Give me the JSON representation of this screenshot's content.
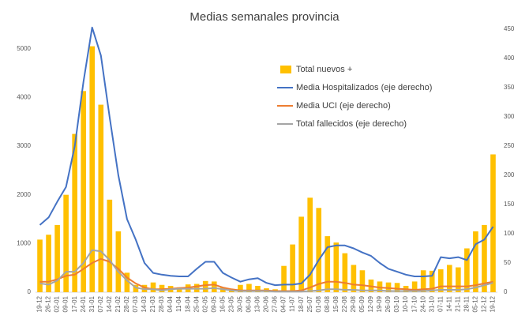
{
  "chart_data": {
    "type": "bar",
    "title": "Medias semanales provincia",
    "legend": "upper right",
    "categories": [
      "19-12",
      "26-12",
      "02-01",
      "09-01",
      "17-01",
      "24-01",
      "31-01",
      "07-02",
      "14-02",
      "21-02",
      "28-02",
      "07-03",
      "14-03",
      "21-03",
      "28-03",
      "04-04",
      "11-04",
      "18-04",
      "25-04",
      "02-05",
      "09-05",
      "16-05",
      "23-05",
      "30-05",
      "06-06",
      "13-06",
      "20-06",
      "27-06",
      "04-07",
      "11-07",
      "18-07",
      "25-07",
      "01-08",
      "08-08",
      "15-08",
      "22-08",
      "29-08",
      "05-09",
      "12-09",
      "19-09",
      "26-09",
      "03-10",
      "10-10",
      "17-10",
      "24-10",
      "31-10",
      "07-11",
      "14-11",
      "21-11",
      "28-11",
      "05-12",
      "12-12",
      "19-12"
    ],
    "ylim": [
      0,
      5400
    ],
    "yticks": [
      0,
      1000,
      2000,
      3000,
      4000,
      5000
    ],
    "y2lim": [
      0,
      450
    ],
    "y2ticks": [
      0,
      50,
      100,
      150,
      200,
      250,
      300,
      350,
      400,
      450
    ],
    "series": [
      {
        "name": "Total nuevos +",
        "type": "bar",
        "color": "#ffc000",
        "values": [
          1080,
          1180,
          1380,
          2000,
          3250,
          4130,
          5050,
          3850,
          1900,
          1250,
          400,
          150,
          150,
          200,
          150,
          130,
          100,
          160,
          170,
          230,
          220,
          100,
          50,
          150,
          170,
          130,
          80,
          60,
          540,
          980,
          1550,
          1940,
          1730,
          1150,
          1020,
          800,
          560,
          450,
          260,
          220,
          200,
          190,
          130,
          220,
          450,
          440,
          470,
          560,
          510,
          900,
          1250,
          1380,
          2830
        ]
      },
      {
        "name": "Media Hospitalizados (eje derecho)",
        "type": "line",
        "axis": "y2",
        "color": "#4472c4",
        "values": [
          115,
          128,
          155,
          180,
          250,
          360,
          453,
          405,
          300,
          200,
          125,
          90,
          50,
          33,
          30,
          28,
          27,
          27,
          40,
          52,
          52,
          33,
          25,
          18,
          22,
          24,
          16,
          12,
          13,
          13,
          15,
          30,
          55,
          77,
          80,
          80,
          75,
          68,
          62,
          50,
          40,
          35,
          30,
          27,
          27,
          28,
          60,
          58,
          60,
          55,
          82,
          90,
          112
        ]
      },
      {
        "name": "Media UCI (eje derecho)",
        "type": "line",
        "axis": "y2",
        "color": "#ed7d31",
        "values": [
          18,
          18,
          22,
          28,
          30,
          40,
          50,
          57,
          52,
          40,
          25,
          15,
          8,
          5,
          5,
          6,
          7,
          8,
          10,
          12,
          13,
          8,
          5,
          3,
          3,
          3,
          3,
          2,
          2,
          2,
          3,
          8,
          14,
          18,
          18,
          16,
          13,
          12,
          10,
          8,
          7,
          6,
          5,
          4,
          5,
          6,
          10,
          10,
          10,
          10,
          12,
          15,
          18
        ]
      },
      {
        "name": "Total fallecidos (eje derecho)",
        "type": "line",
        "axis": "y2",
        "color": "#a5a5a5",
        "values": [
          15,
          13,
          20,
          35,
          35,
          50,
          72,
          70,
          55,
          35,
          20,
          8,
          5,
          5,
          3,
          5,
          6,
          6,
          6,
          6,
          7,
          5,
          3,
          2,
          2,
          2,
          2,
          1,
          1,
          1,
          1,
          2,
          3,
          5,
          5,
          4,
          4,
          3,
          3,
          3,
          2,
          2,
          2,
          2,
          2,
          3,
          4,
          4,
          4,
          5,
          8,
          12,
          16
        ]
      }
    ]
  }
}
